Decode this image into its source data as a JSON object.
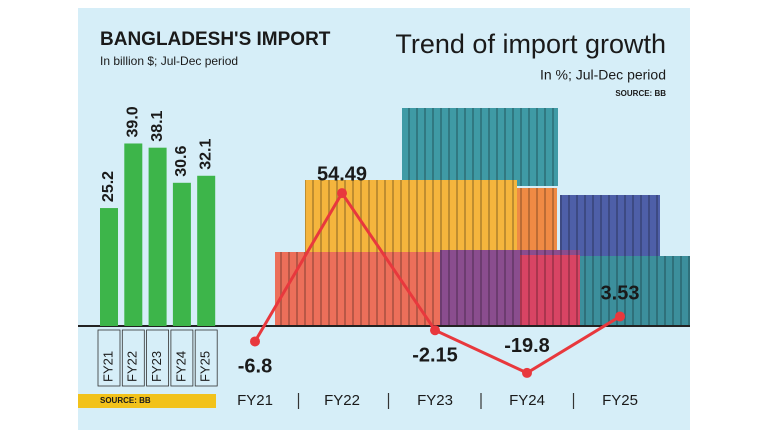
{
  "chart_data": [
    {
      "type": "bar",
      "title": "BANGLADESH'S IMPORT",
      "subtitle": "In billion $; Jul-Dec period",
      "categories": [
        "FY21",
        "FY22",
        "FY23",
        "FY24",
        "FY25"
      ],
      "values": [
        25.2,
        39.0,
        38.1,
        30.6,
        32.1
      ],
      "value_labels": [
        "25.2",
        "39.0",
        "38.1",
        "30.6",
        "32.1"
      ],
      "color": "#3db54a",
      "source": "SOURCE: BB"
    },
    {
      "type": "line",
      "title": "Trend of import growth",
      "subtitle": "In %; Jul-Dec period",
      "source": "SOURCE: BB",
      "categories": [
        "FY21",
        "FY22",
        "FY23",
        "FY24",
        "FY25"
      ],
      "values": [
        -6.8,
        54.49,
        -2.15,
        -19.8,
        3.53
      ],
      "color": "#e8383d"
    }
  ]
}
